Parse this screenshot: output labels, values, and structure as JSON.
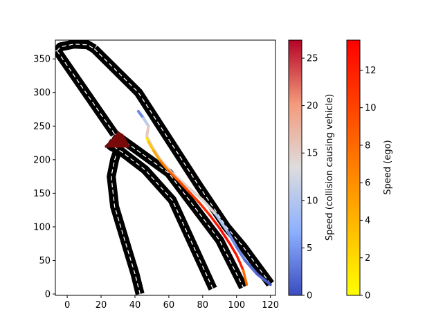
{
  "chart_data": {
    "type": "line",
    "xlim": [
      -7,
      123
    ],
    "ylim": [
      -2,
      378
    ],
    "x_ticks": [
      "0",
      "20",
      "40",
      "60",
      "80",
      "100",
      "120"
    ],
    "x_tick_values": [
      0,
      20,
      40,
      60,
      80,
      100,
      120
    ],
    "y_ticks": [
      "0",
      "50",
      "100",
      "150",
      "200",
      "250",
      "300",
      "350"
    ],
    "y_tick_values": [
      0,
      50,
      100,
      150,
      200,
      250,
      300,
      350
    ],
    "grid": false,
    "road_edges": [
      {
        "x": [
          43,
          40,
          34,
          28,
          26,
          28,
          30,
          26,
          24
        ],
        "y": [
          0,
          30,
          80,
          130,
          175,
          200,
          215,
          220,
          225
        ]
      },
      {
        "x": [
          24,
          32,
          46,
          62,
          86
        ],
        "y": [
          225,
          212,
          185,
          140,
          8
        ]
      },
      {
        "x": [
          28,
          60,
          90,
          104
        ],
        "y": [
          238,
          180,
          80,
          10
        ]
      },
      {
        "x": [
          -6,
          28
        ],
        "y": [
          362,
          238
        ]
      },
      {
        "x": [
          -6,
          -4,
          4,
          12,
          14,
          16
        ],
        "y": [
          362,
          368,
          372,
          371,
          368,
          365
        ]
      },
      {
        "x": [
          16,
          42,
          60,
          78,
          94,
          104,
          120
        ],
        "y": [
          365,
          300,
          230,
          160,
          100,
          70,
          15
        ]
      }
    ],
    "collision_area": {
      "x": [
        22,
        25,
        30,
        33,
        37,
        36,
        22
      ],
      "y": [
        218,
        228,
        242,
        238,
        220,
        218,
        218
      ]
    },
    "ego_path": {
      "x": [
        47,
        48,
        51,
        55,
        60,
        66,
        72,
        78,
        84,
        90,
        96,
        100,
        104,
        106
      ],
      "y": [
        232,
        226,
        213,
        198,
        183,
        168,
        152,
        136,
        118,
        98,
        75,
        58,
        35,
        14
      ],
      "speed": [
        0.5,
        2,
        4,
        6,
        8,
        9,
        10,
        11,
        12,
        13,
        13,
        13,
        11,
        5
      ]
    },
    "collision_vehicle_path": {
      "x": [
        42,
        45,
        48,
        47,
        50,
        55,
        62,
        70,
        80,
        88,
        95,
        100,
        105,
        112,
        118,
        120
      ],
      "y": [
        272,
        262,
        250,
        235,
        220,
        200,
        180,
        162,
        140,
        118,
        92,
        70,
        50,
        30,
        18,
        14
      ],
      "speed": [
        3,
        5,
        16,
        15,
        15,
        15,
        15,
        15,
        14,
        14,
        5,
        4,
        3,
        2,
        1,
        0
      ]
    },
    "colorbars": [
      {
        "label": "Speed (collision causing vehicle)",
        "colormap": "coolwarm",
        "range": [
          0,
          26.9
        ],
        "ticks": [
          "0",
          "5",
          "10",
          "15",
          "20",
          "25"
        ],
        "tick_values": [
          0,
          5,
          10,
          15,
          20,
          25
        ]
      },
      {
        "label": "Speed (ego)",
        "colormap": "autumn_r",
        "range": [
          0,
          13.6
        ],
        "ticks": [
          "0",
          "2",
          "4",
          "6",
          "8",
          "10",
          "12"
        ],
        "tick_values": [
          0,
          2,
          4,
          6,
          8,
          10,
          12
        ]
      }
    ],
    "colors": {
      "road": "#000000",
      "lane_marking": "#ffffff",
      "collision_area": "#7a0a0a"
    }
  }
}
